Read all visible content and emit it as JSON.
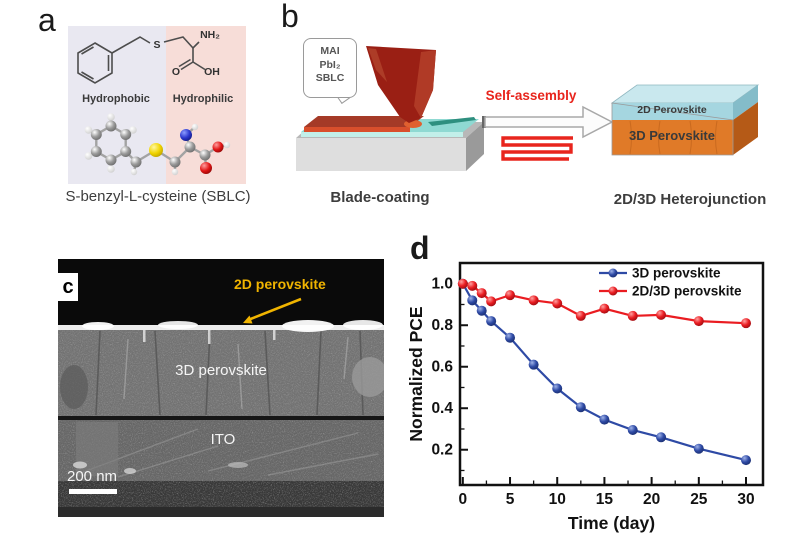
{
  "panel_a": {
    "label": "a",
    "hydrophobic_label": "Hydrophobic",
    "hydrophilic_label": "Hydrophilic",
    "caption": "S-benzyl-L-cysteine (SBLC)",
    "atom_labels": {
      "nh2": "NH₂",
      "o": "O",
      "oh": "OH",
      "s": "S"
    },
    "colors": {
      "hydrophobic_bg": "#e9e8f1",
      "hydrophilic_bg": "#f7ddd8"
    }
  },
  "panel_b": {
    "label": "b",
    "bubble_lines": [
      "MAI",
      "PbI₂",
      "SBLC"
    ],
    "process_caption": "Blade-coating",
    "arrow_label": "Self-assembly",
    "stack_top_label": "2D Perovskite",
    "stack_bottom_label": "3D Perovskite",
    "result_caption": "2D/3D Heterojunction",
    "colors": {
      "accent_red": "#e8251d",
      "blade": "#9a1f14",
      "film": "#a53a27",
      "substrate_teal": "#8fd9d2",
      "layer_2d": "#a5d6e0",
      "layer_3d": "#e07a28"
    }
  },
  "panel_c": {
    "label": "c",
    "annotation_2d": "2D perovskite",
    "annotation_3d": "3D perovskite",
    "annotation_ito": "ITO",
    "scale_bar_label": "200 nm",
    "annotation_color": "#f0b400"
  },
  "panel_d": {
    "label": "d"
  },
  "chart_data": {
    "type": "line",
    "title": "",
    "xlabel": "Time (day)",
    "ylabel": "Normalized PCE",
    "x_ticks": [
      0,
      5,
      10,
      15,
      20,
      25,
      30
    ],
    "y_ticks": [
      0.2,
      0.4,
      0.6,
      0.8,
      1.0
    ],
    "x_minor_step": 2.5,
    "y_minor_step": 0.1,
    "xlim": [
      -0.3,
      31.8
    ],
    "ylim": [
      0.03,
      1.1
    ],
    "grid": false,
    "legend_position": "top-right",
    "x": [
      0,
      1,
      2,
      3,
      5,
      7.5,
      10,
      12.5,
      15,
      18,
      21,
      25,
      30
    ],
    "series": [
      {
        "name": "3D perovskite",
        "color": "#2e4aa5",
        "values": [
          1.0,
          0.92,
          0.87,
          0.82,
          0.74,
          0.61,
          0.495,
          0.405,
          0.345,
          0.295,
          0.26,
          0.205,
          0.15
        ]
      },
      {
        "name": "2D/3D perovskite",
        "color": "#ea1c21",
        "values": [
          1.0,
          0.99,
          0.955,
          0.915,
          0.945,
          0.92,
          0.905,
          0.845,
          0.88,
          0.845,
          0.85,
          0.82,
          0.81
        ]
      }
    ]
  }
}
